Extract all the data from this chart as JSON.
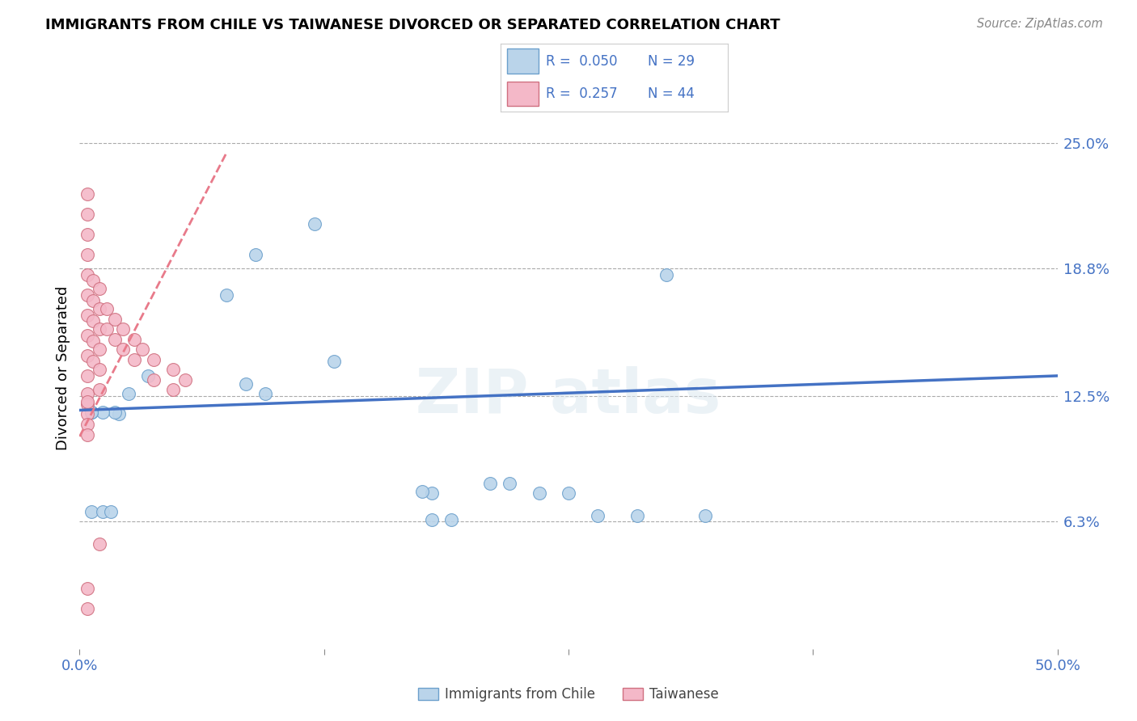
{
  "title": "IMMIGRANTS FROM CHILE VS TAIWANESE DIVORCED OR SEPARATED CORRELATION CHART",
  "source": "Source: ZipAtlas.com",
  "ylabel": "Divorced or Separated",
  "y_tick_labels": [
    "25.0%",
    "18.8%",
    "12.5%",
    "6.3%"
  ],
  "y_tick_values": [
    0.25,
    0.188,
    0.125,
    0.063
  ],
  "x_tick_labels": [
    "0.0%",
    "",
    "",
    "",
    "50.0%"
  ],
  "x_tick_values": [
    0.0,
    0.125,
    0.25,
    0.375,
    0.5
  ],
  "xlim": [
    0.0,
    0.5
  ],
  "ylim": [
    0.0,
    0.278
  ],
  "legend_blue_R": "0.050",
  "legend_blue_N": "29",
  "legend_pink_R": "0.257",
  "legend_pink_N": "44",
  "legend_label_blue": "Immigrants from Chile",
  "legend_label_pink": "Taiwanese",
  "blue_fill": "#bad4ea",
  "blue_edge": "#6ca0cc",
  "pink_fill": "#f4b8c8",
  "pink_edge": "#d07080",
  "trend_blue_color": "#4472c4",
  "trend_pink_color": "#e87a8a",
  "blue_scatter_x": [
    0.075,
    0.12,
    0.09,
    0.035,
    0.025,
    0.02,
    0.13,
    0.085,
    0.095,
    0.018,
    0.012,
    0.006,
    0.006,
    0.18,
    0.235,
    0.175,
    0.22,
    0.25,
    0.21,
    0.006,
    0.012,
    0.016,
    0.006,
    0.32,
    0.18,
    0.19,
    0.265,
    0.285,
    0.3
  ],
  "blue_scatter_y": [
    0.175,
    0.21,
    0.195,
    0.135,
    0.126,
    0.116,
    0.142,
    0.131,
    0.126,
    0.117,
    0.117,
    0.117,
    0.117,
    0.077,
    0.077,
    0.078,
    0.082,
    0.077,
    0.082,
    0.068,
    0.068,
    0.068,
    0.117,
    0.066,
    0.064,
    0.064,
    0.066,
    0.066,
    0.185
  ],
  "pink_scatter_x": [
    0.004,
    0.004,
    0.004,
    0.004,
    0.004,
    0.004,
    0.004,
    0.004,
    0.004,
    0.004,
    0.004,
    0.004,
    0.004,
    0.004,
    0.004,
    0.007,
    0.007,
    0.007,
    0.007,
    0.007,
    0.01,
    0.01,
    0.01,
    0.01,
    0.01,
    0.01,
    0.014,
    0.014,
    0.018,
    0.018,
    0.022,
    0.022,
    0.028,
    0.028,
    0.032,
    0.038,
    0.038,
    0.048,
    0.048,
    0.054,
    0.01,
    0.004,
    0.004,
    0.004
  ],
  "pink_scatter_y": [
    0.225,
    0.215,
    0.205,
    0.195,
    0.185,
    0.175,
    0.165,
    0.155,
    0.145,
    0.135,
    0.126,
    0.121,
    0.116,
    0.111,
    0.106,
    0.182,
    0.172,
    0.162,
    0.152,
    0.142,
    0.178,
    0.168,
    0.158,
    0.148,
    0.138,
    0.128,
    0.168,
    0.158,
    0.163,
    0.153,
    0.158,
    0.148,
    0.153,
    0.143,
    0.148,
    0.143,
    0.133,
    0.138,
    0.128,
    0.133,
    0.052,
    0.03,
    0.02,
    0.122
  ]
}
